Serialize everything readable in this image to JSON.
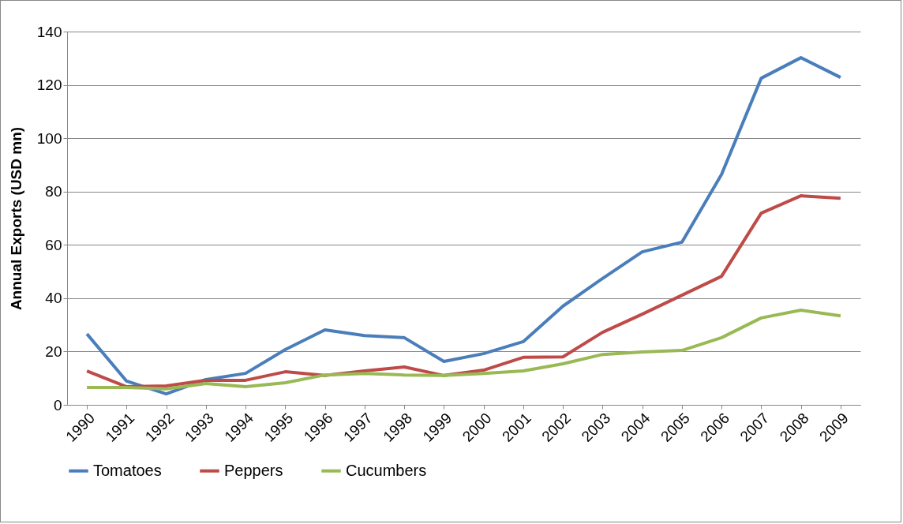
{
  "chart_data": {
    "type": "line",
    "ylabel": "Annual Exports (USD mn)",
    "categories": [
      "1990",
      "1991",
      "1992",
      "1993",
      "1994",
      "1995",
      "1996",
      "1997",
      "1998",
      "1999",
      "2000",
      "2001",
      "2002",
      "2003",
      "2004",
      "2005",
      "2006",
      "2007",
      "2008",
      "2009"
    ],
    "series": [
      {
        "name": "Tomatoes",
        "color": "#4a7ebb",
        "values": [
          26.6,
          8.9,
          4.1,
          9.5,
          11.8,
          20.7,
          28.1,
          26,
          25.2,
          16.3,
          19.2,
          23.7,
          37,
          47.4,
          57.4,
          61,
          86.4,
          122.5,
          130.2,
          122.8
        ]
      },
      {
        "name": "Peppers",
        "color": "#be4b48",
        "values": [
          12.7,
          6.8,
          7.1,
          9.2,
          9.2,
          12.4,
          11,
          12.7,
          14.2,
          11,
          13,
          17.8,
          18,
          27.2,
          34,
          41.1,
          48.2,
          71.9,
          78.4,
          77.5
        ]
      },
      {
        "name": "Cucumbers",
        "color": "#98b954",
        "values": [
          6.5,
          6.5,
          6,
          8,
          6.8,
          8.3,
          11.2,
          11.8,
          11.2,
          11,
          11.8,
          12.7,
          15.4,
          18.9,
          19.8,
          20.4,
          25.2,
          32.6,
          35.5,
          33.4
        ]
      }
    ],
    "ylim": [
      0,
      140
    ],
    "yticks": [
      0,
      20,
      40,
      60,
      80,
      100,
      120,
      140
    ],
    "grid": "y",
    "legend": "bottom",
    "marker": "none",
    "line_style": "solid"
  }
}
